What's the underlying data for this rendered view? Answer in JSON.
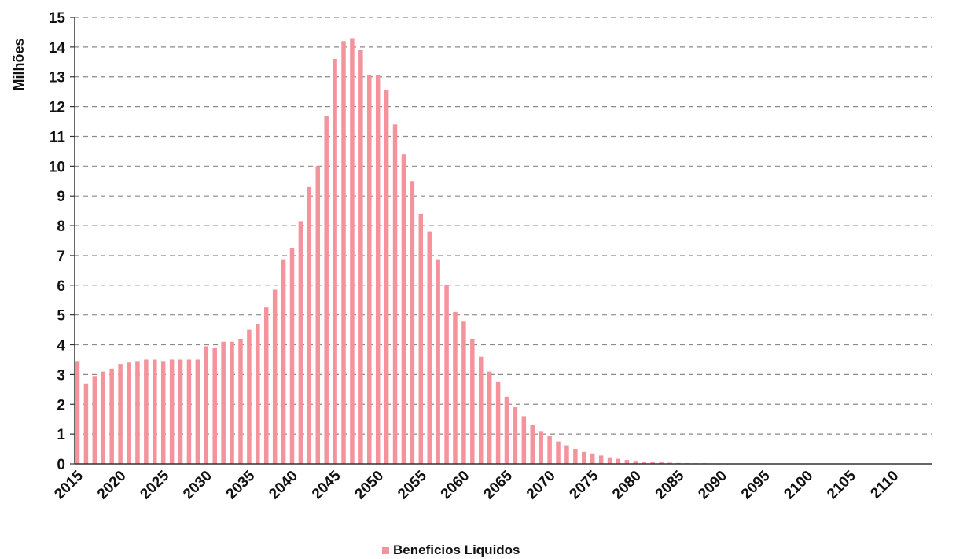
{
  "chart_data": {
    "type": "bar",
    "title": "",
    "xlabel": "",
    "ylabel": "Milhões",
    "ylim": [
      0,
      15
    ],
    "yticks": [
      0,
      1,
      2,
      3,
      4,
      5,
      6,
      7,
      8,
      9,
      10,
      11,
      12,
      13,
      14,
      15
    ],
    "xticks": [
      2015,
      2020,
      2025,
      2030,
      2035,
      2040,
      2045,
      2050,
      2055,
      2060,
      2065,
      2070,
      2075,
      2080,
      2085,
      2090,
      2095,
      2100,
      2105,
      2110
    ],
    "grid": "horizontal-dashed",
    "legend_position": "bottom",
    "colors": {
      "bar": "#f4939b",
      "grid": "#8a8a8a",
      "axis": "#333333"
    },
    "x": [
      2015,
      2016,
      2017,
      2018,
      2019,
      2020,
      2021,
      2022,
      2023,
      2024,
      2025,
      2026,
      2027,
      2028,
      2029,
      2030,
      2031,
      2032,
      2033,
      2034,
      2035,
      2036,
      2037,
      2038,
      2039,
      2040,
      2041,
      2042,
      2043,
      2044,
      2045,
      2046,
      2047,
      2048,
      2049,
      2050,
      2051,
      2052,
      2053,
      2054,
      2055,
      2056,
      2057,
      2058,
      2059,
      2060,
      2061,
      2062,
      2063,
      2064,
      2065,
      2066,
      2067,
      2068,
      2069,
      2070,
      2071,
      2072,
      2073,
      2074,
      2075,
      2076,
      2077,
      2078,
      2079,
      2080,
      2081,
      2082,
      2083,
      2084,
      2085,
      2086,
      2087,
      2088,
      2089,
      2090,
      2091,
      2092,
      2093,
      2094,
      2095,
      2096,
      2097,
      2098,
      2099,
      2100,
      2101,
      2102,
      2103,
      2104,
      2105,
      2106,
      2107,
      2108,
      2109,
      2110,
      2111,
      2112,
      2113
    ],
    "series": [
      {
        "name": "Beneficios Liquidos",
        "values": [
          3.45,
          2.7,
          2.95,
          3.1,
          3.2,
          3.35,
          3.4,
          3.45,
          3.5,
          3.5,
          3.45,
          3.5,
          3.5,
          3.5,
          3.5,
          3.95,
          3.9,
          4.1,
          4.1,
          4.2,
          4.5,
          4.7,
          5.25,
          5.85,
          6.85,
          7.25,
          8.15,
          9.3,
          10.0,
          11.7,
          13.6,
          14.2,
          14.3,
          13.9,
          13.05,
          13.05,
          12.55,
          11.4,
          10.4,
          9.5,
          8.4,
          7.8,
          6.85,
          6.0,
          5.1,
          4.8,
          4.2,
          3.6,
          3.1,
          2.75,
          2.25,
          1.9,
          1.6,
          1.3,
          1.1,
          0.95,
          0.75,
          0.62,
          0.5,
          0.4,
          0.35,
          0.28,
          0.22,
          0.17,
          0.13,
          0.1,
          0.08,
          0.06,
          0.05,
          0.04,
          0.03,
          0.025,
          0.02,
          0.02,
          0.015,
          0.01,
          0.01,
          0.01,
          0.01,
          0.01,
          0.01,
          0.01,
          0.01,
          0.01,
          0.01,
          0.01,
          0.01,
          0.01,
          0.01,
          0.01,
          0.01,
          0.01,
          0.01,
          0.01,
          0.01,
          0.01,
          0.01,
          0.01,
          0.01
        ]
      }
    ]
  }
}
